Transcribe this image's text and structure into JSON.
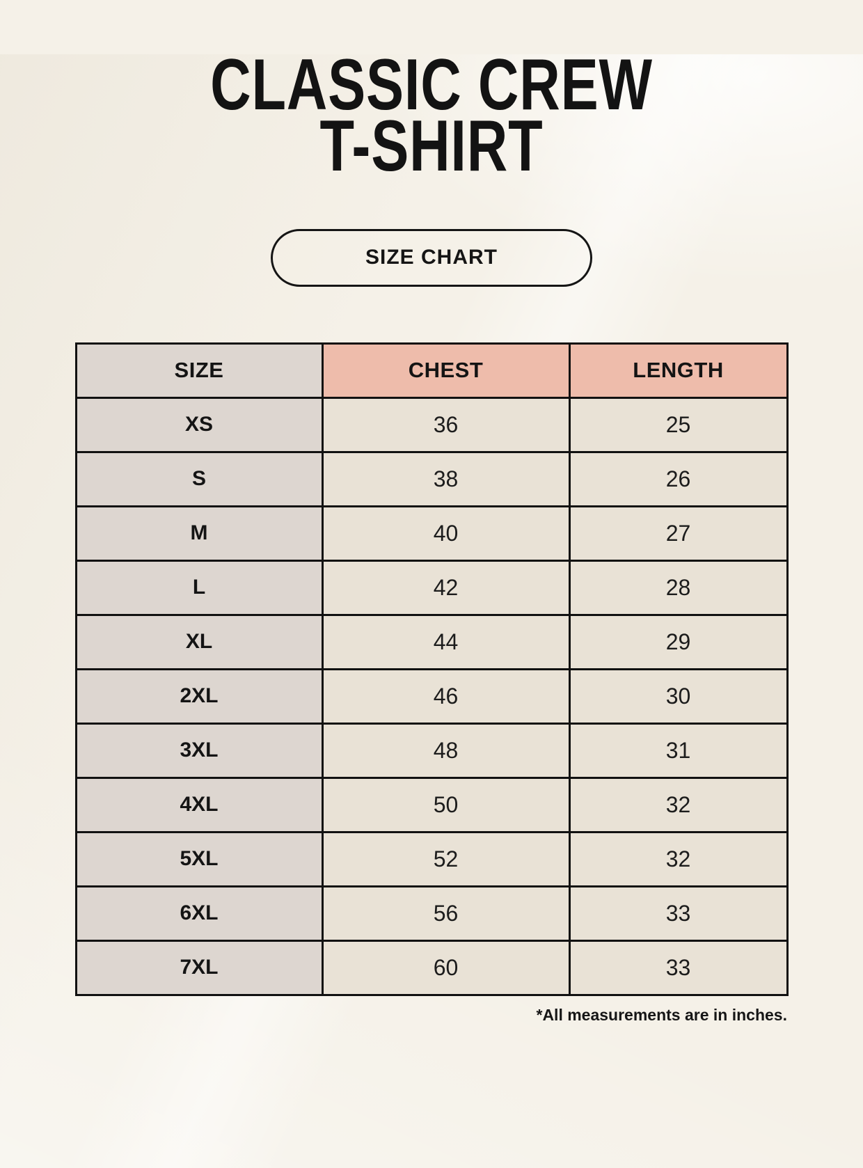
{
  "page": {
    "title_line1": "CLASSIC CREW",
    "title_line2": "T-SHIRT",
    "button_label": "SIZE CHART",
    "footnote": "*All measurements are in inches."
  },
  "colors": {
    "page_background": "#f5f1e8",
    "size_column_background": "#ddd6d0",
    "header_accent": "#eebcab",
    "data_cell_background": "#e9e2d6",
    "border": "#111111",
    "text": "#161616"
  },
  "chart_data": {
    "type": "table",
    "title": "CLASSIC CREW T-SHIRT",
    "columns": [
      "SIZE",
      "CHEST",
      "LENGTH"
    ],
    "rows": [
      [
        "XS",
        "36",
        "25"
      ],
      [
        "S",
        "38",
        "26"
      ],
      [
        "M",
        "40",
        "27"
      ],
      [
        "L",
        "42",
        "28"
      ],
      [
        "XL",
        "44",
        "29"
      ],
      [
        "2XL",
        "46",
        "30"
      ],
      [
        "3XL",
        "48",
        "31"
      ],
      [
        "4XL",
        "50",
        "32"
      ],
      [
        "5XL",
        "52",
        "32"
      ],
      [
        "6XL",
        "56",
        "33"
      ],
      [
        "7XL",
        "60",
        "33"
      ]
    ],
    "units": "inches",
    "footnote": "*All measurements are in inches."
  }
}
